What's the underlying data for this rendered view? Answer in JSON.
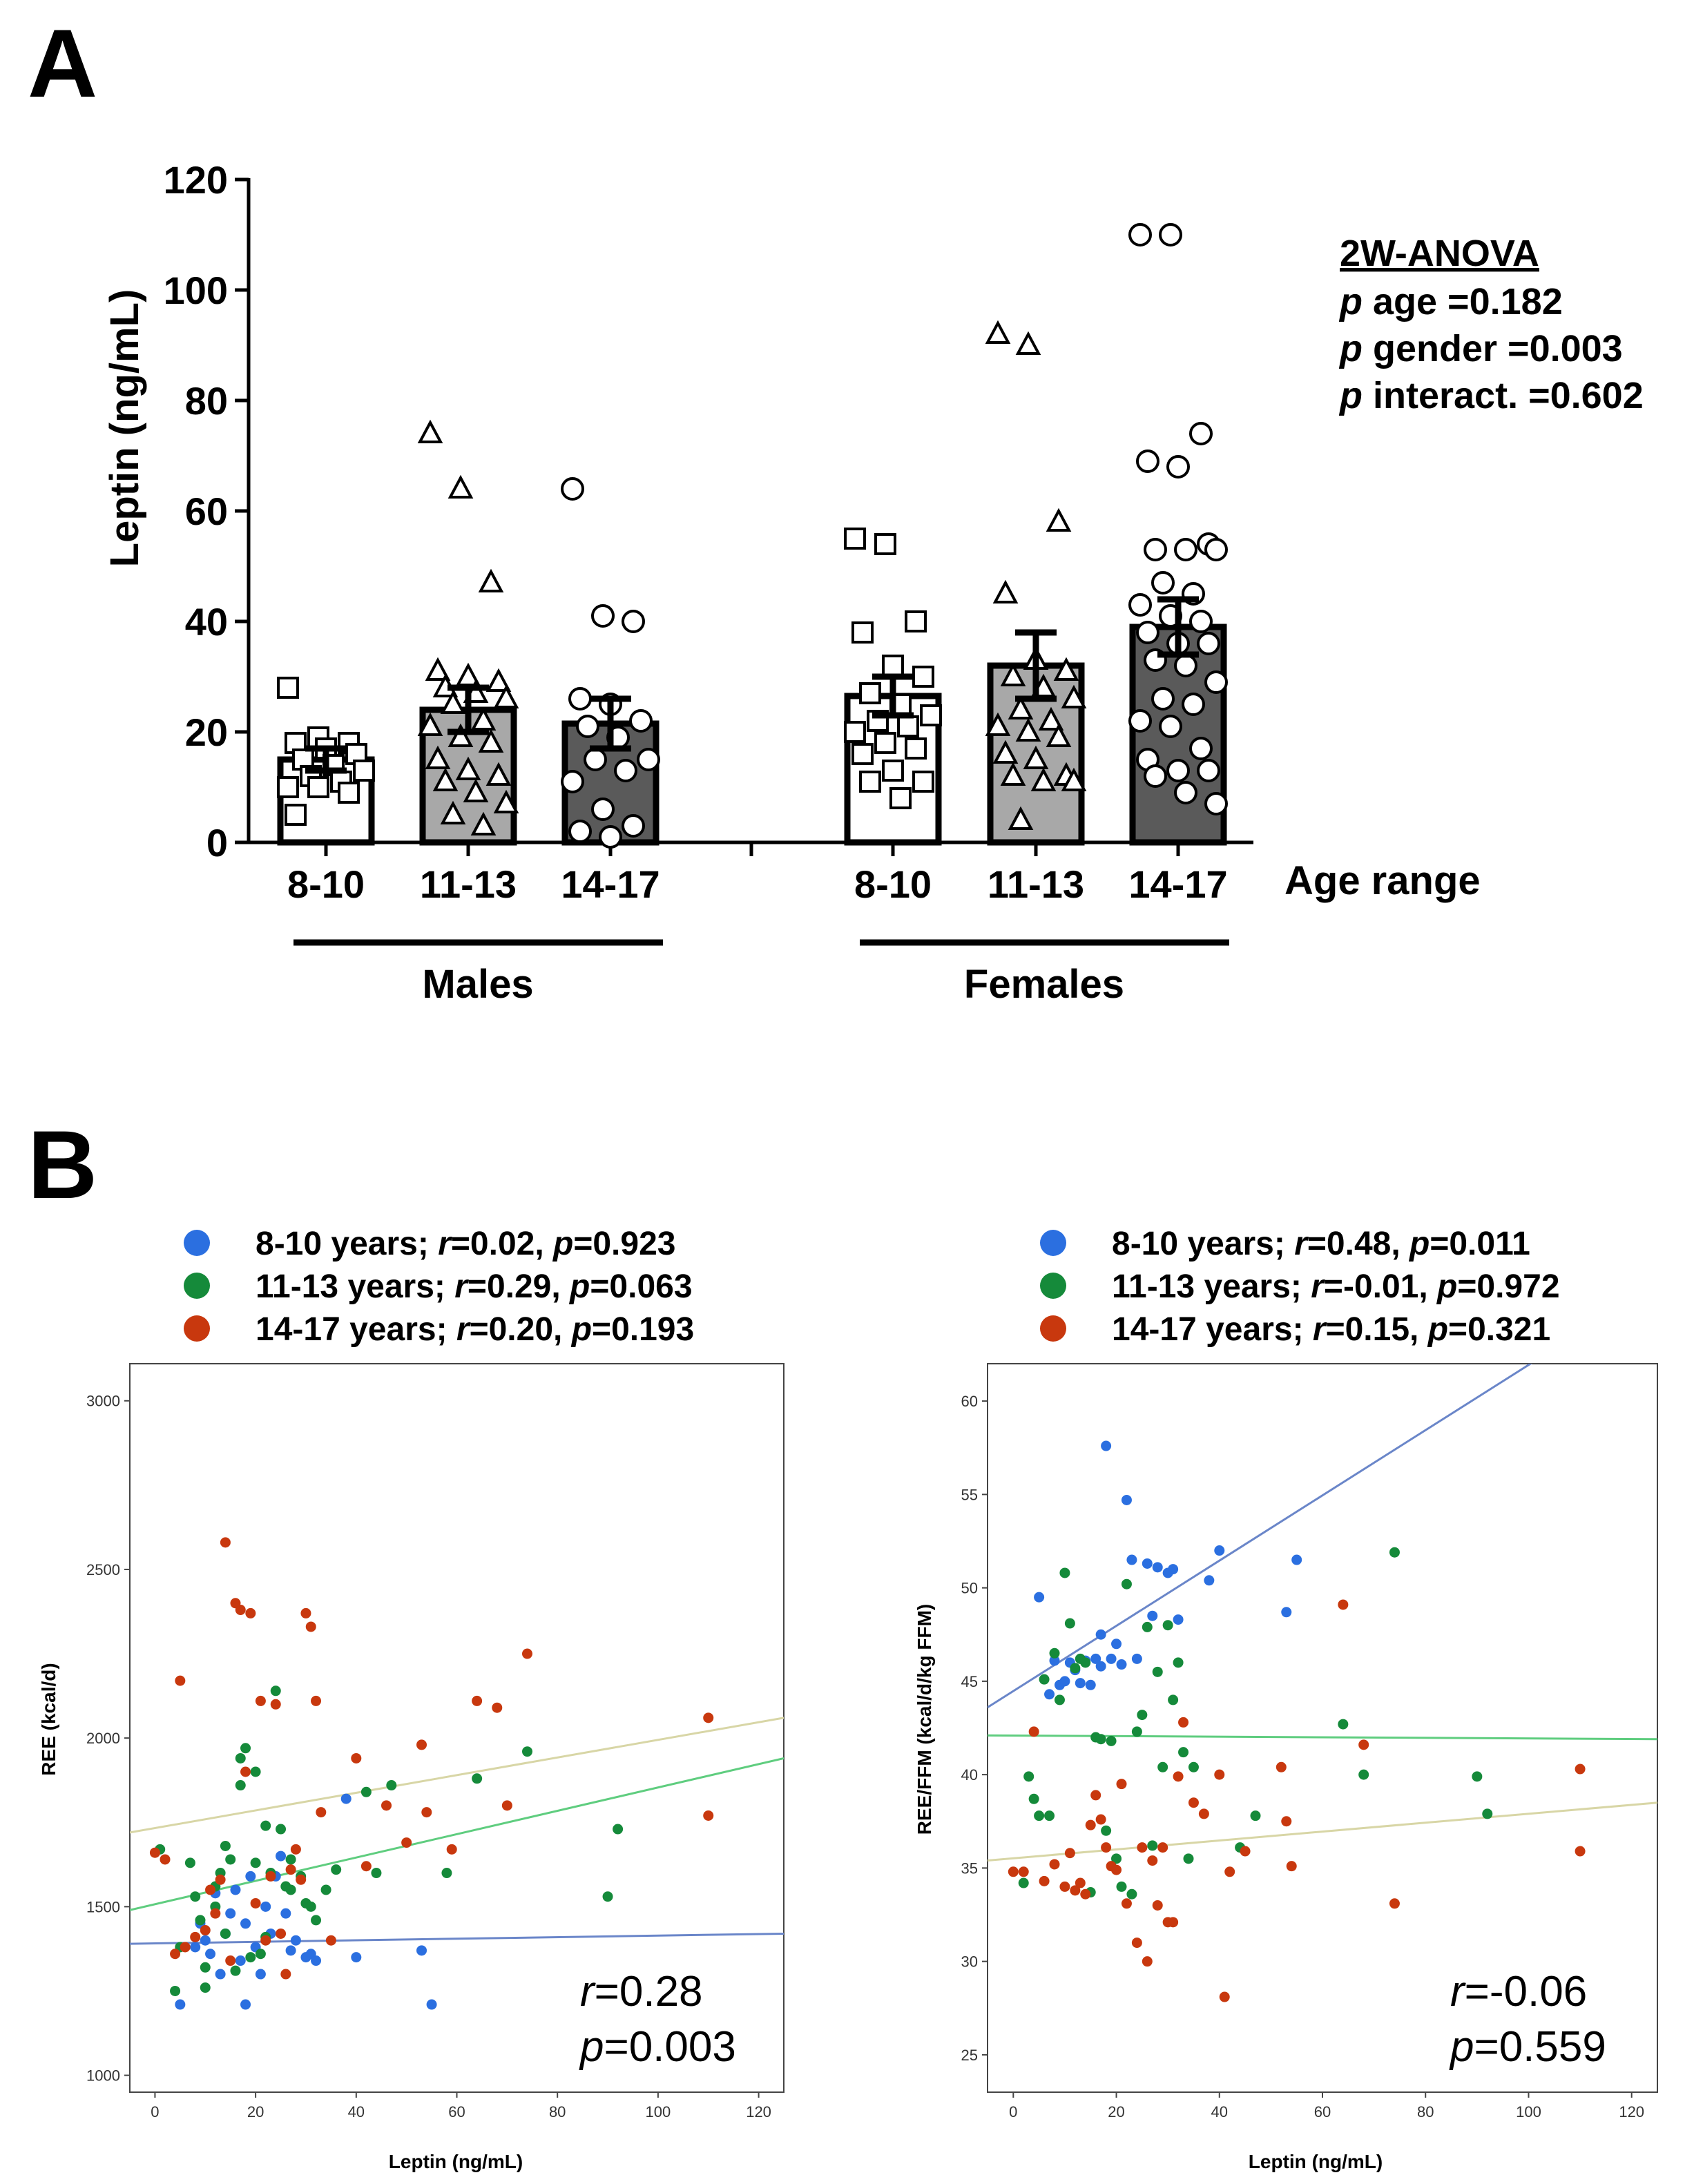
{
  "panel_a": {
    "letter": "A",
    "anova": {
      "title": "2W-ANOVA",
      "lines": [
        {
          "p": "p",
          "text": " age =0.182"
        },
        {
          "p": "p",
          "text": " gender =0.003"
        },
        {
          "p": "p",
          "text": " interact. =0.602"
        }
      ]
    },
    "group_labels": {
      "males": "Males",
      "females": "Females",
      "age_range": "Age range"
    }
  },
  "panel_b": {
    "letter": "B",
    "left_legend": [
      {
        "label": "8-10 years; ",
        "r": "=0.02, ",
        "p": "=0.923",
        "color": "#2b6fe0"
      },
      {
        "label": "11-13 years; ",
        "r": "=0.29, ",
        "p": "=0.063",
        "color": "#158a3a"
      },
      {
        "label": "14-17 years; ",
        "r": "=0.20, ",
        "p": "=0.193",
        "color": "#c8380e"
      }
    ],
    "right_legend": [
      {
        "label": "8-10 years; ",
        "r": "=0.48, ",
        "p": "=0.011",
        "color": "#2b6fe0"
      },
      {
        "label": "11-13 years; ",
        "r": "=-0.01, ",
        "p": "=0.972",
        "color": "#158a3a"
      },
      {
        "label": "14-17 years; ",
        "r": "=0.15, ",
        "p": "=0.321",
        "color": "#c8380e"
      }
    ],
    "left_corr": {
      "r": "=0.28",
      "p": "=0.003"
    },
    "right_corr": {
      "r": "=-0.06",
      "p": "=0.559"
    }
  },
  "chart_data": [
    {
      "id": "bar",
      "type": "bar",
      "title": "",
      "xlabel": "Age range",
      "ylabel": "Leptin (ng/mL)",
      "ylim": [
        0,
        120
      ],
      "yticks": [
        0,
        20,
        40,
        60,
        80,
        100,
        120
      ],
      "categories": [
        "8-10",
        "11-13",
        "14-17",
        "8-10",
        "11-13",
        "14-17"
      ],
      "groups": [
        "Males",
        "Males",
        "Males",
        "Females",
        "Females",
        "Females"
      ],
      "values": [
        15,
        24,
        21.5,
        26.5,
        32,
        39
      ],
      "sem": [
        2,
        4,
        4.5,
        3.5,
        6,
        5
      ],
      "markers": [
        "square",
        "triangle",
        "circle",
        "square",
        "triangle",
        "circle"
      ],
      "fills": [
        "#ffffff",
        "#a8a8a8",
        "#5a5a5a",
        "#ffffff",
        "#a8a8a8",
        "#5a5a5a"
      ],
      "points": [
        [
          28,
          19,
          18,
          18,
          17,
          16,
          15,
          14,
          13,
          12,
          11,
          10,
          10,
          9,
          5
        ],
        [
          74,
          64,
          47,
          31,
          30,
          29,
          28,
          27,
          26,
          25,
          22,
          21,
          19,
          18,
          15,
          13,
          12,
          11,
          9,
          7,
          5,
          3
        ],
        [
          64,
          41,
          40,
          26,
          25,
          22,
          21,
          19,
          15,
          15,
          13,
          11,
          6,
          3,
          2,
          1
        ],
        [
          55,
          54,
          40,
          38,
          32,
          30,
          27,
          25,
          23,
          22,
          21,
          20,
          18,
          17,
          16,
          13,
          11,
          11,
          8
        ],
        [
          92,
          90,
          58,
          45,
          33,
          31,
          30,
          28,
          26,
          24,
          22,
          21,
          20,
          19,
          16,
          15,
          12,
          12,
          11,
          11,
          4
        ],
        [
          110,
          110,
          74,
          69,
          68,
          54,
          53,
          53,
          53,
          47,
          45,
          43,
          41,
          40,
          38,
          36,
          36,
          33,
          32,
          29,
          26,
          25,
          22,
          21,
          17,
          15,
          13,
          13,
          12,
          9,
          7
        ]
      ]
    },
    {
      "id": "scatter_ree",
      "type": "scatter",
      "xlabel": "Leptin (ng/mL)",
      "ylabel": "REE (kcal/d)",
      "xlim": [
        -5,
        125
      ],
      "ylim": [
        950,
        3110
      ],
      "xticks": [
        0,
        20,
        40,
        60,
        80,
        100,
        120
      ],
      "yticks": [
        1000,
        1500,
        2000,
        2500,
        3000
      ],
      "series": [
        {
          "name": "8-10 years",
          "color": "#2b6fe0",
          "x": [
            5,
            8,
            9,
            10,
            11,
            12,
            13,
            14,
            15,
            16,
            17,
            18,
            18,
            19,
            20,
            21,
            22,
            23,
            24,
            25,
            26,
            27,
            28,
            30,
            31,
            32,
            38,
            40,
            53,
            55
          ],
          "y": [
            1210,
            1380,
            1450,
            1400,
            1360,
            1540,
            1300,
            1420,
            1480,
            1550,
            1340,
            1210,
            1450,
            1590,
            1380,
            1300,
            1500,
            1420,
            1590,
            1650,
            1480,
            1370,
            1400,
            1350,
            1360,
            1340,
            1820,
            1350,
            1370,
            1210
          ]
        },
        {
          "name": "11-13 years",
          "color": "#158a3a",
          "x": [
            1,
            4,
            5,
            7,
            8,
            9,
            10,
            10,
            12,
            12,
            13,
            14,
            14,
            15,
            16,
            17,
            17,
            18,
            19,
            20,
            20,
            21,
            22,
            22,
            23,
            24,
            25,
            26,
            27,
            27,
            29,
            30,
            31,
            32,
            34,
            36,
            42,
            44,
            47,
            58,
            64,
            74,
            90,
            92
          ],
          "y": [
            1670,
            1250,
            1380,
            1630,
            1530,
            1460,
            1320,
            1260,
            1560,
            1500,
            1600,
            1420,
            1680,
            1640,
            1310,
            1860,
            1940,
            1970,
            1350,
            1900,
            1630,
            1360,
            1410,
            1740,
            1600,
            2140,
            1730,
            1560,
            1550,
            1640,
            1590,
            1510,
            1500,
            1460,
            1550,
            1610,
            1840,
            1600,
            1860,
            1600,
            1880,
            1960,
            1530,
            1730
          ]
        },
        {
          "name": "14-17 years",
          "color": "#c8380e",
          "x": [
            0,
            2,
            4,
            5,
            6,
            8,
            10,
            11,
            12,
            13,
            14,
            15,
            16,
            17,
            18,
            19,
            20,
            21,
            22,
            23,
            24,
            25,
            26,
            27,
            28,
            29,
            30,
            31,
            32,
            33,
            35,
            40,
            42,
            46,
            50,
            53,
            54,
            59,
            64,
            68,
            70,
            74,
            110,
            110
          ],
          "y": [
            1660,
            1640,
            1360,
            2170,
            1380,
            1410,
            1430,
            1550,
            1480,
            1580,
            2580,
            1340,
            2400,
            2380,
            1900,
            2370,
            1510,
            2110,
            1400,
            1590,
            2100,
            1420,
            1300,
            1610,
            1670,
            1580,
            2370,
            2330,
            2110,
            1780,
            1400,
            1940,
            1620,
            1800,
            1690,
            1980,
            1780,
            1670,
            2110,
            2090,
            1800,
            2250,
            2060,
            1770
          ]
        }
      ],
      "fit_lines": [
        {
          "name": "8-10 years",
          "color": "#6a86c9",
          "x": [
            -5,
            125
          ],
          "y": [
            1390,
            1420
          ]
        },
        {
          "name": "11-13 years",
          "color": "#5fcd7f",
          "x": [
            -5,
            125
          ],
          "y": [
            1490,
            1940
          ]
        },
        {
          "name": "14-17 years",
          "color": "#d8d6a6",
          "x": [
            -5,
            125
          ],
          "y": [
            1720,
            2060
          ]
        }
      ]
    },
    {
      "id": "scatter_ree_ffm",
      "type": "scatter",
      "xlabel": "Leptin (ng/mL)",
      "ylabel": "REE/FFM (kcal/d/kg FFM)",
      "xlim": [
        -5,
        125
      ],
      "ylim": [
        23,
        62
      ],
      "xticks": [
        0,
        20,
        40,
        60,
        80,
        100,
        120
      ],
      "yticks": [
        25,
        30,
        35,
        40,
        45,
        50,
        55,
        60
      ],
      "series": [
        {
          "name": "8-10 years",
          "color": "#2b6fe0",
          "x": [
            5,
            7,
            8,
            9,
            10,
            11,
            12,
            13,
            14,
            15,
            16,
            17,
            17,
            18,
            19,
            20,
            21,
            22,
            23,
            24,
            26,
            27,
            28,
            30,
            31,
            32,
            38,
            40,
            53,
            55
          ],
          "y": [
            49.5,
            44.3,
            46.1,
            44.8,
            45.0,
            46.0,
            45.6,
            44.9,
            46.1,
            44.8,
            46.2,
            47.5,
            45.8,
            57.6,
            46.2,
            47.0,
            45.9,
            54.7,
            51.5,
            46.2,
            51.3,
            48.5,
            51.1,
            50.8,
            51.0,
            48.3,
            50.4,
            52.0,
            48.7,
            51.5
          ]
        },
        {
          "name": "11-13 years",
          "color": "#158a3a",
          "x": [
            2,
            3,
            4,
            5,
            6,
            7,
            8,
            9,
            10,
            11,
            12,
            13,
            14,
            15,
            16,
            17,
            18,
            19,
            20,
            21,
            22,
            23,
            24,
            25,
            26,
            27,
            28,
            29,
            30,
            31,
            32,
            33,
            34,
            35,
            44,
            47,
            64,
            68,
            74,
            90,
            92
          ],
          "y": [
            34.2,
            39.9,
            38.7,
            37.8,
            45.1,
            37.8,
            46.5,
            44.0,
            50.8,
            48.1,
            45.7,
            46.2,
            46.0,
            33.7,
            42.0,
            41.9,
            37.0,
            41.8,
            35.5,
            34.0,
            50.2,
            33.6,
            42.3,
            43.2,
            47.9,
            36.2,
            45.5,
            40.4,
            48.0,
            44.0,
            46.0,
            41.2,
            35.5,
            40.4,
            36.1,
            37.8,
            42.7,
            40.0,
            51.9,
            39.9,
            37.9
          ]
        },
        {
          "name": "14-17 years",
          "color": "#c8380e",
          "x": [
            0,
            2,
            4,
            6,
            8,
            10,
            11,
            12,
            13,
            14,
            15,
            16,
            17,
            18,
            19,
            20,
            21,
            22,
            24,
            25,
            26,
            27,
            28,
            29,
            30,
            31,
            32,
            33,
            35,
            37,
            40,
            41,
            42,
            45,
            52,
            53,
            54,
            64,
            68,
            74,
            110,
            110
          ],
          "y": [
            34.8,
            34.8,
            42.3,
            34.3,
            35.2,
            34.0,
            35.8,
            33.8,
            34.2,
            33.6,
            37.3,
            38.9,
            37.6,
            36.1,
            35.1,
            34.9,
            39.5,
            33.1,
            31.0,
            36.1,
            30.0,
            35.4,
            33.0,
            36.1,
            32.1,
            32.1,
            39.9,
            42.8,
            38.5,
            37.9,
            40.0,
            28.1,
            34.8,
            35.9,
            40.4,
            37.5,
            35.1,
            49.1,
            41.6,
            33.1,
            40.3,
            35.9
          ]
        }
      ],
      "fit_lines": [
        {
          "name": "8-10 years",
          "color": "#6a86c9",
          "x": [
            -5,
            125
          ],
          "y": [
            43.6,
            66.3
          ]
        },
        {
          "name": "11-13 years",
          "color": "#5fcd7f",
          "x": [
            -5,
            125
          ],
          "y": [
            42.1,
            41.9
          ]
        },
        {
          "name": "14-17 years",
          "color": "#d8d6a6",
          "x": [
            -5,
            125
          ],
          "y": [
            35.4,
            38.5
          ]
        }
      ]
    }
  ]
}
